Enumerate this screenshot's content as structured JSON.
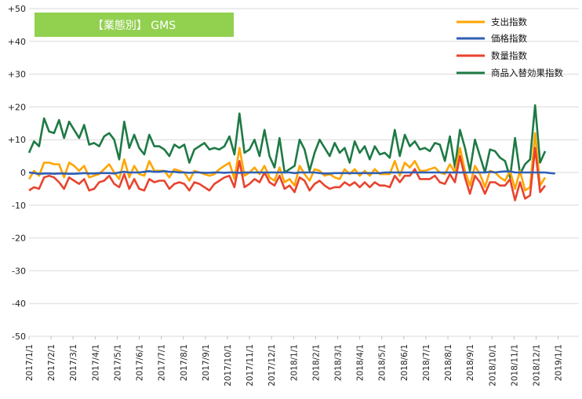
{
  "chart_data": {
    "type": "line",
    "title": "【業態別】 GMS",
    "ylim": [
      -50,
      50
    ],
    "y_ticks": [
      {
        "value": 50,
        "label": "+50"
      },
      {
        "value": 40,
        "label": "+40"
      },
      {
        "value": 30,
        "label": "+30"
      },
      {
        "value": 20,
        "label": "+20"
      },
      {
        "value": 10,
        "label": "+10"
      },
      {
        "value": 0,
        "label": "0"
      },
      {
        "value": -10,
        "label": "-10"
      },
      {
        "value": -20,
        "label": "-20"
      },
      {
        "value": -30,
        "label": "-30"
      },
      {
        "value": -40,
        "label": "-40"
      },
      {
        "value": -50,
        "label": "-50"
      }
    ],
    "x_tick_labels": [
      "2017/1/1",
      "2017/2/1",
      "2017/3/1",
      "2017/4/1",
      "2017/5/1",
      "2017/6/1",
      "2017/7/1",
      "2017/8/1",
      "2017/9/1",
      "2017/10/1",
      "2017/11/1",
      "2017/12/1",
      "2018/1/1",
      "2018/2/1",
      "2018/3/1",
      "2018/4/1",
      "2018/5/1",
      "2018/6/1",
      "2018/7/1",
      "2018/8/1",
      "2018/9/1",
      "2018/10/1",
      "2018/11/1",
      "2018/12/1",
      "2019/1/1"
    ],
    "x_points_per_tick": 4.4,
    "grid": true,
    "legend_position": "top-right",
    "series": [
      {
        "name": "支出指数",
        "color": "#ffa500",
        "values": [
          -2.0,
          0.5,
          -1.0,
          3.0,
          3.0,
          2.5,
          2.5,
          -1.5,
          3.0,
          2.0,
          0.5,
          2.0,
          -1.5,
          -1.0,
          -0.5,
          1.0,
          2.5,
          0.0,
          -2.0,
          4.0,
          -1.5,
          2.0,
          -0.5,
          -1.0,
          3.5,
          0.5,
          0.5,
          0.5,
          -1.5,
          1.0,
          0.5,
          0.0,
          -2.5,
          0.5,
          0.0,
          -0.5,
          -1.0,
          -0.5,
          1.0,
          2.0,
          3.0,
          -2.0,
          7.5,
          -1.0,
          0.0,
          1.5,
          -0.5,
          2.0,
          -1.5,
          -2.5,
          1.5,
          -3.0,
          -2.0,
          -4.0,
          2.0,
          -0.5,
          -2.5,
          1.0,
          0.5,
          -1.0,
          -0.5,
          -1.5,
          -2.0,
          1.0,
          -0.5,
          1.0,
          -1.0,
          0.5,
          -1.0,
          1.0,
          -0.5,
          -0.5,
          -0.5,
          3.5,
          -1.0,
          3.0,
          1.5,
          3.5,
          0.5,
          0.5,
          1.0,
          1.5,
          0.0,
          -0.5,
          2.5,
          0.0,
          7.5,
          0.5,
          -4.0,
          2.0,
          -0.5,
          -4.5,
          0.5,
          0.0,
          -1.5,
          -2.5,
          0.5,
          -5.0,
          0.5,
          -5.5,
          -4.5,
          12.0,
          -4.0,
          -1.5
        ]
      },
      {
        "name": "価格指数",
        "color": "#2f5fb3",
        "values": [
          0.0,
          -0.2,
          -0.4,
          -0.3,
          -0.3,
          -0.4,
          -0.3,
          -0.3,
          -0.4,
          -0.4,
          -0.3,
          -0.2,
          -0.3,
          -0.3,
          -0.2,
          -0.2,
          -0.2,
          -0.3,
          0.0,
          0.2,
          0.0,
          0.0,
          0.0,
          0.2,
          0.4,
          0.2,
          0.2,
          0.4,
          0.2,
          0.2,
          0.0,
          0.0,
          -0.1,
          0.0,
          0.0,
          -0.1,
          -0.1,
          0.0,
          0.0,
          -0.1,
          0.0,
          0.0,
          -0.1,
          0.0,
          0.0,
          0.0,
          0.0,
          0.0,
          0.0,
          0.0,
          0.0,
          0.0,
          0.0,
          -0.2,
          0.0,
          0.0,
          0.0,
          0.0,
          -0.2,
          -0.3,
          -0.3,
          -0.2,
          -0.2,
          -0.2,
          -0.2,
          -0.2,
          -0.2,
          -0.2,
          -0.2,
          -0.2,
          -0.2,
          0.0,
          0.0,
          0.0,
          0.0,
          0.0,
          0.0,
          0.0,
          0.0,
          0.0,
          0.0,
          0.0,
          0.0,
          0.0,
          0.0,
          0.0,
          0.0,
          0.0,
          0.0,
          0.0,
          0.0,
          0.0,
          0.2,
          0.0,
          0.2,
          0.3,
          0.3,
          0.0,
          0.0,
          0.0,
          0.0,
          0.0,
          0.0,
          0.0,
          -0.2,
          -0.3
        ]
      },
      {
        "name": "数量指数",
        "color": "#e8432e",
        "values": [
          -5.5,
          -4.5,
          -5.0,
          -1.5,
          -1.0,
          -1.5,
          -3.0,
          -5.0,
          -1.5,
          -2.5,
          -3.5,
          -2.0,
          -5.5,
          -5.0,
          -3.0,
          -2.5,
          -1.0,
          -3.5,
          -4.5,
          -0.5,
          -5.0,
          -2.0,
          -5.0,
          -5.5,
          -2.0,
          -3.0,
          -2.5,
          -2.5,
          -5.0,
          -3.5,
          -3.0,
          -3.5,
          -5.5,
          -3.0,
          -3.5,
          -4.5,
          -5.5,
          -3.5,
          -2.5,
          -1.5,
          -1.0,
          -4.5,
          3.5,
          -4.5,
          -3.5,
          -2.0,
          -3.0,
          0.0,
          -3.0,
          -4.0,
          -1.0,
          -5.0,
          -4.0,
          -6.0,
          -1.5,
          -2.5,
          -5.5,
          -3.5,
          -2.5,
          -4.0,
          -5.0,
          -4.5,
          -4.5,
          -3.0,
          -4.0,
          -3.0,
          -4.5,
          -3.0,
          -4.5,
          -3.0,
          -4.0,
          -4.0,
          -4.5,
          -1.0,
          -3.0,
          -1.0,
          -1.0,
          1.0,
          -2.0,
          -2.0,
          -2.0,
          -1.0,
          -3.0,
          -3.5,
          -0.5,
          -3.0,
          5.0,
          -1.5,
          -6.5,
          -1.0,
          -3.0,
          -6.5,
          -3.0,
          -3.0,
          -4.0,
          -4.0,
          -2.0,
          -8.5,
          -3.0,
          -8.0,
          -7.0,
          7.5,
          -6.0,
          -4.0
        ]
      },
      {
        "name": "商品入替効果指数",
        "color": "#1e7a45",
        "values": [
          6.0,
          9.5,
          8.0,
          16.5,
          12.5,
          12.0,
          16.0,
          10.5,
          15.5,
          13.0,
          10.5,
          14.5,
          8.5,
          9.0,
          8.0,
          11.0,
          12.0,
          10.0,
          4.0,
          15.5,
          7.5,
          11.5,
          7.5,
          5.5,
          11.5,
          8.0,
          8.0,
          7.0,
          5.0,
          8.5,
          7.5,
          8.5,
          3.0,
          7.0,
          8.0,
          9.0,
          7.0,
          7.5,
          7.0,
          8.0,
          11.0,
          5.5,
          18.0,
          6.0,
          7.0,
          10.0,
          5.0,
          13.0,
          5.0,
          1.5,
          10.5,
          0.0,
          1.0,
          2.0,
          10.0,
          7.0,
          0.5,
          6.0,
          10.0,
          7.5,
          5.0,
          9.0,
          6.0,
          7.5,
          3.0,
          9.5,
          6.0,
          8.0,
          4.0,
          8.0,
          5.5,
          6.0,
          4.5,
          13.0,
          5.0,
          11.5,
          8.0,
          9.5,
          7.0,
          7.5,
          6.5,
          9.0,
          8.5,
          3.5,
          11.0,
          1.5,
          13.0,
          7.5,
          0.5,
          10.0,
          5.0,
          0.0,
          7.0,
          6.5,
          4.5,
          3.5,
          -1.5,
          10.5,
          -0.5,
          2.5,
          4.0,
          20.5,
          3.0,
          6.5
        ]
      }
    ]
  }
}
